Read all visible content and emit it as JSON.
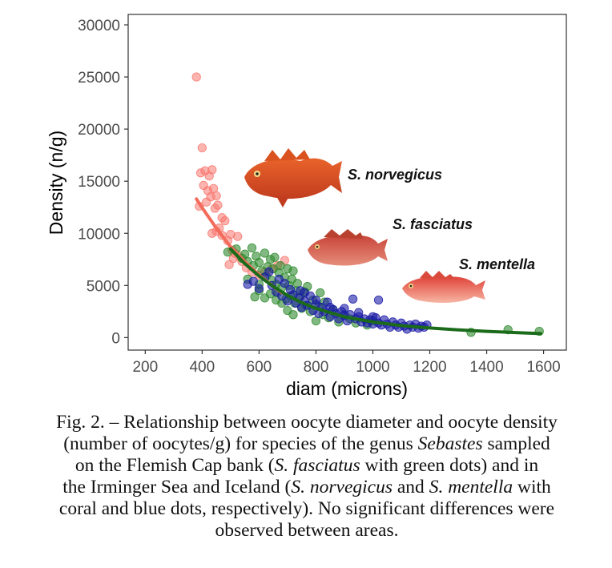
{
  "chart_data": {
    "type": "scatter",
    "xlabel": "diam (microns)",
    "ylabel": "Density (n/g)",
    "xlim": [
      140,
      1680
    ],
    "ylim": [
      -1200,
      31000
    ],
    "x_ticks": [
      200,
      400,
      600,
      800,
      1000,
      1200,
      1400,
      1600
    ],
    "y_ticks": [
      0,
      5000,
      10000,
      15000,
      20000,
      25000,
      30000
    ],
    "grid": false,
    "background": "#ffffff",
    "species_labels": [
      "S. norvegicus",
      "S. fasciatus",
      "S. mentella"
    ],
    "series": [
      {
        "name": "S. norvegicus",
        "color": "#f8766d",
        "points": [
          [
            380,
            25000
          ],
          [
            400,
            18200
          ],
          [
            395,
            15800
          ],
          [
            410,
            16000
          ],
          [
            425,
            15500
          ],
          [
            435,
            16100
          ],
          [
            405,
            14600
          ],
          [
            420,
            14100
          ],
          [
            440,
            14300
          ],
          [
            450,
            13600
          ],
          [
            430,
            13500
          ],
          [
            415,
            13000
          ],
          [
            390,
            12600
          ],
          [
            455,
            12700
          ],
          [
            445,
            12400
          ],
          [
            470,
            11500
          ],
          [
            480,
            11200
          ],
          [
            460,
            10500
          ],
          [
            435,
            10000
          ],
          [
            450,
            10200
          ],
          [
            470,
            9800
          ],
          [
            500,
            9900
          ],
          [
            525,
            9700
          ],
          [
            490,
            9300
          ],
          [
            505,
            8400
          ],
          [
            515,
            8100
          ],
          [
            530,
            7800
          ],
          [
            540,
            7300
          ],
          [
            510,
            7600
          ],
          [
            495,
            7000
          ],
          [
            555,
            6700
          ],
          [
            575,
            6300
          ],
          [
            600,
            6000
          ],
          [
            620,
            6300
          ],
          [
            645,
            6600
          ],
          [
            665,
            6900
          ],
          [
            690,
            7400
          ]
        ],
        "fit": [
          [
            380,
            13300
          ],
          [
            400,
            12450
          ],
          [
            450,
            10500
          ],
          [
            500,
            8700
          ],
          [
            550,
            7300
          ],
          [
            600,
            6000
          ],
          [
            650,
            4900
          ],
          [
            680,
            4300
          ]
        ]
      },
      {
        "name": "S. fasciatus",
        "color": "#2e8b2e",
        "points": [
          [
            490,
            8200
          ],
          [
            520,
            8500
          ],
          [
            540,
            7600
          ],
          [
            550,
            8000
          ],
          [
            560,
            7300
          ],
          [
            575,
            8600
          ],
          [
            580,
            6900
          ],
          [
            590,
            7800
          ],
          [
            600,
            7200
          ],
          [
            610,
            6400
          ],
          [
            620,
            8100
          ],
          [
            625,
            5900
          ],
          [
            630,
            6800
          ],
          [
            640,
            7500
          ],
          [
            645,
            5500
          ],
          [
            650,
            6600
          ],
          [
            655,
            7700
          ],
          [
            660,
            5100
          ],
          [
            665,
            4300
          ],
          [
            670,
            6200
          ],
          [
            675,
            6900
          ],
          [
            680,
            4800
          ],
          [
            690,
            5800
          ],
          [
            695,
            3700
          ],
          [
            700,
            6600
          ],
          [
            705,
            5000
          ],
          [
            710,
            4000
          ],
          [
            715,
            5600
          ],
          [
            720,
            6400
          ],
          [
            725,
            3300
          ],
          [
            730,
            4500
          ],
          [
            735,
            5200
          ],
          [
            745,
            3900
          ],
          [
            750,
            2800
          ],
          [
            760,
            4400
          ],
          [
            765,
            3100
          ],
          [
            770,
            4900
          ],
          [
            780,
            2500
          ],
          [
            790,
            3600
          ],
          [
            800,
            1600
          ],
          [
            810,
            3000
          ],
          [
            815,
            4300
          ],
          [
            825,
            2200
          ],
          [
            830,
            3400
          ],
          [
            845,
            1900
          ],
          [
            860,
            2700
          ],
          [
            880,
            1500
          ],
          [
            900,
            2200
          ],
          [
            920,
            1800
          ],
          [
            940,
            1400
          ],
          [
            980,
            1200
          ],
          [
            1000,
            1600
          ],
          [
            600,
            4500
          ],
          [
            620,
            3800
          ],
          [
            585,
            3900
          ],
          [
            640,
            4200
          ],
          [
            680,
            3300
          ],
          [
            700,
            2600
          ],
          [
            720,
            2200
          ],
          [
            560,
            5600
          ],
          [
            600,
            5100
          ],
          [
            660,
            3600
          ],
          [
            1345,
            500
          ],
          [
            1475,
            750
          ],
          [
            1585,
            600
          ]
        ],
        "fit": [
          [
            500,
            8500
          ],
          [
            550,
            7100
          ],
          [
            600,
            5900
          ],
          [
            650,
            4900
          ],
          [
            700,
            4050
          ],
          [
            750,
            3350
          ],
          [
            800,
            2800
          ],
          [
            900,
            2000
          ],
          [
            1000,
            1500
          ],
          [
            1100,
            1150
          ],
          [
            1200,
            920
          ],
          [
            1300,
            740
          ],
          [
            1400,
            600
          ],
          [
            1500,
            480
          ],
          [
            1590,
            380
          ]
        ]
      },
      {
        "name": "S. mentella",
        "color": "#1a1aa6",
        "points": [
          [
            560,
            5100
          ],
          [
            580,
            5400
          ],
          [
            600,
            4700
          ],
          [
            620,
            5800
          ],
          [
            635,
            6300
          ],
          [
            645,
            5000
          ],
          [
            660,
            4400
          ],
          [
            670,
            5600
          ],
          [
            680,
            4000
          ],
          [
            690,
            5200
          ],
          [
            700,
            3500
          ],
          [
            710,
            4600
          ],
          [
            720,
            4100
          ],
          [
            730,
            3300
          ],
          [
            740,
            3800
          ],
          [
            745,
            4500
          ],
          [
            750,
            2900
          ],
          [
            760,
            3500
          ],
          [
            770,
            3100
          ],
          [
            780,
            4000
          ],
          [
            790,
            2600
          ],
          [
            800,
            3200
          ],
          [
            810,
            2300
          ],
          [
            820,
            2900
          ],
          [
            830,
            2500
          ],
          [
            840,
            3400
          ],
          [
            850,
            2000
          ],
          [
            860,
            2700
          ],
          [
            870,
            2300
          ],
          [
            880,
            1800
          ],
          [
            890,
            2500
          ],
          [
            900,
            2100
          ],
          [
            910,
            1600
          ],
          [
            920,
            2200
          ],
          [
            930,
            3700
          ],
          [
            940,
            1800
          ],
          [
            950,
            2000
          ],
          [
            960,
            1500
          ],
          [
            970,
            1800
          ],
          [
            980,
            1400
          ],
          [
            990,
            1700
          ],
          [
            1000,
            1300
          ],
          [
            1010,
            1900
          ],
          [
            1020,
            1400
          ],
          [
            1020,
            3600
          ],
          [
            1030,
            1200
          ],
          [
            1040,
            1700
          ],
          [
            1050,
            1300
          ],
          [
            1060,
            1000
          ],
          [
            1070,
            1500
          ],
          [
            1080,
            1200
          ],
          [
            1090,
            1000
          ],
          [
            1100,
            1400
          ],
          [
            1110,
            1100
          ],
          [
            1120,
            800
          ],
          [
            1130,
            1200
          ],
          [
            1140,
            1000
          ],
          [
            1150,
            1300
          ],
          [
            1160,
            900
          ],
          [
            1170,
            1100
          ],
          [
            1180,
            1000
          ],
          [
            1190,
            1200
          ],
          [
            850,
            2900
          ],
          [
            900,
            2800
          ],
          [
            950,
            2400
          ],
          [
            1000,
            2000
          ],
          [
            800,
            3600
          ],
          [
            760,
            4300
          ]
        ]
      }
    ]
  },
  "caption": {
    "line1": "Fig. 2. – Relationship between oocyte diameter and oocyte density",
    "line2": "(number of oocytes/g) for species of the genus ",
    "line2_em": "Sebastes",
    "line2_end": " sampled",
    "line3": "on the Flemish Cap bank (",
    "line3_em": "S. fasciatus",
    "line3_end": " with green dots) and in",
    "line4": "the Irminger Sea and Iceland (",
    "line4_em1": "S. norvegicus",
    "line4_mid": " and ",
    "line4_em2": "S. mentella",
    "line4_end": " with",
    "line5": "coral and blue dots, respectively). No significant differences were",
    "line6": "observed between areas."
  },
  "fish_icons": [
    "redfish-norvegicus-icon",
    "redfish-fasciatus-icon",
    "redfish-mentella-icon"
  ]
}
